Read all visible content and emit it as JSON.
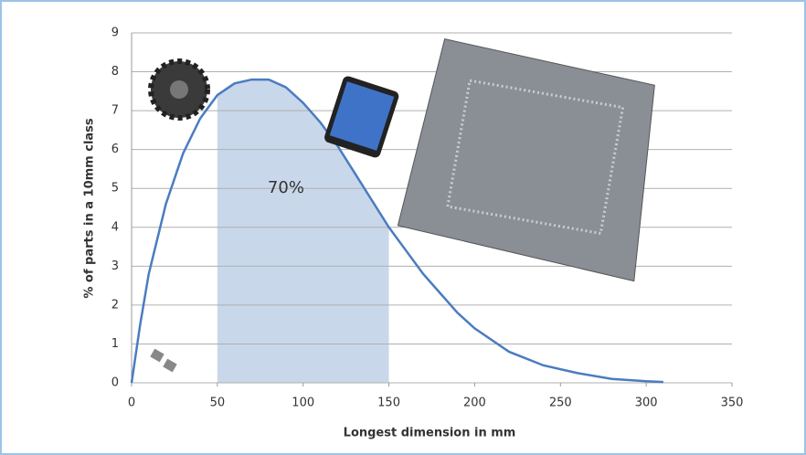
{
  "chart_data": {
    "type": "line",
    "x_label": "Longest dimension in mm",
    "y_label": "% of parts in a 10mm class",
    "x": [
      0,
      5,
      10,
      20,
      30,
      40,
      50,
      60,
      70,
      80,
      90,
      100,
      110,
      120,
      130,
      140,
      150,
      160,
      170,
      180,
      190,
      200,
      220,
      240,
      260,
      280,
      300,
      310
    ],
    "series": [
      {
        "color": "#4a7cc0",
        "values": [
          0,
          1.5,
          2.8,
          4.6,
          5.9,
          6.8,
          7.4,
          7.7,
          7.8,
          7.8,
          7.6,
          7.2,
          6.7,
          6.1,
          5.4,
          4.7,
          4.0,
          3.4,
          2.8,
          2.3,
          1.8,
          1.4,
          0.8,
          0.45,
          0.25,
          0.1,
          0.04,
          0.02
        ]
      }
    ],
    "shade_range": [
      50,
      150
    ],
    "shade_color": "#c9d7ea",
    "annotation": "70%",
    "xlim": [
      0,
      350
    ],
    "xticks": [
      0,
      50,
      100,
      150,
      200,
      250,
      300,
      350
    ],
    "ylim": [
      0,
      9
    ],
    "yticks": [
      0,
      1,
      2,
      3,
      4,
      5,
      6,
      7,
      8,
      9
    ],
    "grid": true
  }
}
